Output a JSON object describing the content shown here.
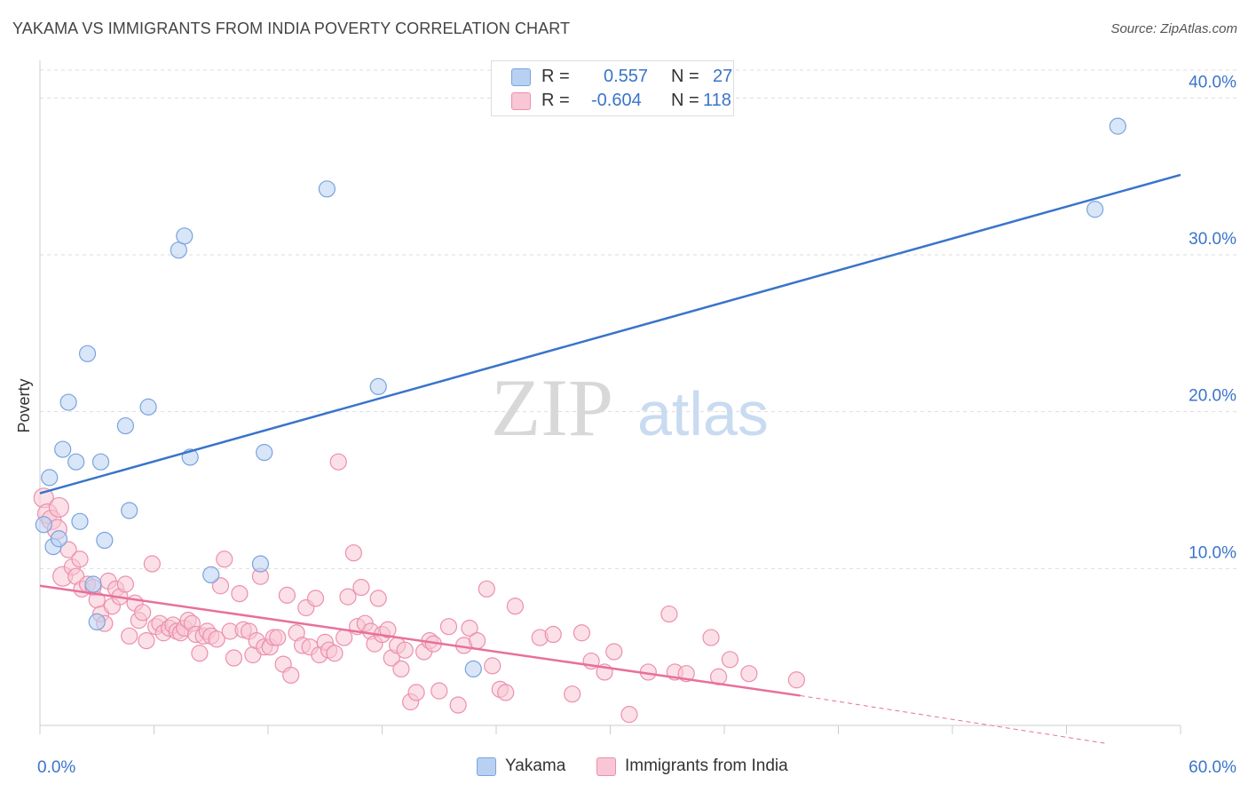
{
  "title": "YAKAMA VS IMMIGRANTS FROM INDIA POVERTY CORRELATION CHART",
  "source": "Source: ZipAtlas.com",
  "watermark": {
    "zip": "ZIP",
    "atlas": "atlas"
  },
  "legend": {
    "rows": [
      {
        "r_label": "R =",
        "r_value": "0.557",
        "n_label": "N =",
        "n_value": "27",
        "color": "#b8d1f3",
        "border": "#7aa3de"
      },
      {
        "r_label": "R =",
        "r_value": "-0.604",
        "n_label": "N =",
        "n_value": "118",
        "color": "#f8c6d4",
        "border": "#ec8fae"
      }
    ]
  },
  "bottom_legend": [
    {
      "label": "Yakama",
      "color": "#b8d1f3",
      "border": "#7aa3de"
    },
    {
      "label": "Immigrants from India",
      "color": "#f8c6d4",
      "border": "#ec8fae"
    }
  ],
  "chart_data": {
    "type": "scatter",
    "title": "YAKAMA VS IMMIGRANTS FROM INDIA POVERTY CORRELATION CHART",
    "xlabel": "",
    "ylabel": "Poverty",
    "xlim": [
      0,
      60
    ],
    "ylim": [
      0,
      42
    ],
    "x_tick_labels": [
      "0.0%",
      "60.0%"
    ],
    "y_ticks": [
      10,
      20,
      30,
      40
    ],
    "y_tick_labels": [
      "10.0%",
      "20.0%",
      "30.0%",
      "40.0%"
    ],
    "grid": "horizontal dashed",
    "legend_position": "top-center",
    "colors": {
      "yakama": "#3a74c9",
      "india": "#e8709b",
      "axis_text": "#3a74c9"
    },
    "series": [
      {
        "name": "Yakama",
        "color": "#7aa3de",
        "fill": "#b8d1f3",
        "trend": {
          "x1": 0,
          "y1": 14.8,
          "x2": 60,
          "y2": 35.1
        },
        "points": [
          [
            0.2,
            12.8
          ],
          [
            0.5,
            15.8
          ],
          [
            0.7,
            11.4
          ],
          [
            1.0,
            11.9
          ],
          [
            1.2,
            17.6
          ],
          [
            1.5,
            20.6
          ],
          [
            1.9,
            16.8
          ],
          [
            2.1,
            13.0
          ],
          [
            2.5,
            23.7
          ],
          [
            2.8,
            9.0
          ],
          [
            3.0,
            6.6
          ],
          [
            3.2,
            16.8
          ],
          [
            3.4,
            11.8
          ],
          [
            4.5,
            19.1
          ],
          [
            4.7,
            13.7
          ],
          [
            5.7,
            20.3
          ],
          [
            7.3,
            30.3
          ],
          [
            7.6,
            31.2
          ],
          [
            7.9,
            17.1
          ],
          [
            9.0,
            9.6
          ],
          [
            11.6,
            10.3
          ],
          [
            11.8,
            17.4
          ],
          [
            15.1,
            34.2
          ],
          [
            17.8,
            21.6
          ],
          [
            22.8,
            3.6
          ],
          [
            56.7,
            38.2
          ],
          [
            55.5,
            32.9
          ]
        ]
      },
      {
        "name": "Immigrants from India",
        "color": "#ec8fae",
        "fill": "#f8c6d4",
        "trend": {
          "x1": 0,
          "y1": 8.9,
          "x2": 40,
          "y2": 1.9,
          "dash_x2": 56,
          "dash_y2": -0.9
        },
        "points": [
          [
            0.2,
            14.5
          ],
          [
            0.4,
            13.5
          ],
          [
            0.6,
            13.1
          ],
          [
            0.9,
            12.5
          ],
          [
            1.0,
            13.9
          ],
          [
            1.2,
            9.5
          ],
          [
            1.5,
            11.2
          ],
          [
            1.7,
            10.1
          ],
          [
            1.9,
            9.5
          ],
          [
            2.1,
            10.6
          ],
          [
            2.2,
            8.7
          ],
          [
            2.5,
            9.0
          ],
          [
            2.8,
            8.8
          ],
          [
            3.0,
            8.0
          ],
          [
            3.2,
            7.1
          ],
          [
            3.4,
            6.5
          ],
          [
            3.6,
            9.2
          ],
          [
            3.8,
            7.6
          ],
          [
            4.0,
            8.7
          ],
          [
            4.2,
            8.2
          ],
          [
            4.5,
            9.0
          ],
          [
            4.7,
            5.7
          ],
          [
            5.0,
            7.8
          ],
          [
            5.2,
            6.7
          ],
          [
            5.4,
            7.2
          ],
          [
            5.6,
            5.4
          ],
          [
            5.9,
            10.3
          ],
          [
            6.1,
            6.3
          ],
          [
            6.3,
            6.5
          ],
          [
            6.5,
            5.9
          ],
          [
            6.8,
            6.2
          ],
          [
            7.0,
            6.4
          ],
          [
            7.2,
            6.0
          ],
          [
            7.4,
            5.9
          ],
          [
            7.6,
            6.2
          ],
          [
            7.8,
            6.7
          ],
          [
            8.0,
            6.5
          ],
          [
            8.2,
            5.8
          ],
          [
            8.4,
            4.6
          ],
          [
            8.6,
            5.7
          ],
          [
            8.8,
            6.0
          ],
          [
            9.0,
            5.7
          ],
          [
            9.3,
            5.5
          ],
          [
            9.5,
            8.9
          ],
          [
            9.7,
            10.6
          ],
          [
            10.0,
            6.0
          ],
          [
            10.2,
            4.3
          ],
          [
            10.5,
            8.4
          ],
          [
            10.7,
            6.1
          ],
          [
            11.0,
            6.0
          ],
          [
            11.2,
            4.5
          ],
          [
            11.4,
            5.4
          ],
          [
            11.6,
            9.5
          ],
          [
            11.8,
            5.0
          ],
          [
            12.1,
            5.0
          ],
          [
            12.3,
            5.6
          ],
          [
            12.5,
            5.6
          ],
          [
            12.8,
            3.9
          ],
          [
            13.0,
            8.3
          ],
          [
            13.2,
            3.2
          ],
          [
            13.5,
            5.9
          ],
          [
            13.8,
            5.1
          ],
          [
            14.0,
            7.5
          ],
          [
            14.2,
            5.0
          ],
          [
            14.5,
            8.1
          ],
          [
            14.7,
            4.5
          ],
          [
            15.0,
            5.3
          ],
          [
            15.2,
            4.8
          ],
          [
            15.5,
            4.6
          ],
          [
            15.7,
            16.8
          ],
          [
            16.0,
            5.6
          ],
          [
            16.2,
            8.2
          ],
          [
            16.5,
            11.0
          ],
          [
            16.7,
            6.3
          ],
          [
            16.9,
            8.8
          ],
          [
            17.1,
            6.5
          ],
          [
            17.4,
            6.0
          ],
          [
            17.6,
            5.2
          ],
          [
            17.8,
            8.1
          ],
          [
            18.0,
            5.8
          ],
          [
            18.3,
            6.1
          ],
          [
            18.5,
            4.3
          ],
          [
            18.8,
            5.1
          ],
          [
            19.0,
            3.6
          ],
          [
            19.2,
            4.8
          ],
          [
            19.5,
            1.5
          ],
          [
            19.8,
            2.1
          ],
          [
            20.2,
            4.7
          ],
          [
            20.5,
            5.4
          ],
          [
            20.7,
            5.2
          ],
          [
            21.0,
            2.2
          ],
          [
            21.5,
            6.3
          ],
          [
            22.0,
            1.3
          ],
          [
            22.3,
            5.1
          ],
          [
            22.6,
            6.2
          ],
          [
            23.0,
            5.4
          ],
          [
            23.5,
            8.7
          ],
          [
            23.8,
            3.8
          ],
          [
            24.2,
            2.3
          ],
          [
            24.5,
            2.1
          ],
          [
            25.0,
            7.6
          ],
          [
            26.3,
            5.6
          ],
          [
            27.0,
            5.8
          ],
          [
            28.0,
            2.0
          ],
          [
            28.5,
            5.9
          ],
          [
            29.0,
            4.1
          ],
          [
            29.7,
            3.4
          ],
          [
            30.2,
            4.7
          ],
          [
            31.0,
            0.7
          ],
          [
            32.0,
            3.4
          ],
          [
            33.1,
            7.1
          ],
          [
            33.4,
            3.4
          ],
          [
            34.0,
            3.3
          ],
          [
            35.3,
            5.6
          ],
          [
            35.7,
            3.1
          ],
          [
            36.3,
            4.2
          ],
          [
            37.3,
            3.3
          ],
          [
            39.8,
            2.9
          ]
        ]
      }
    ]
  }
}
